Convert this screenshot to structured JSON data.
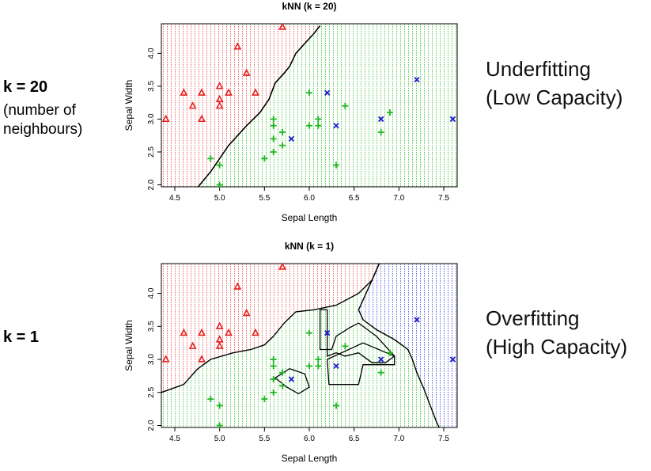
{
  "left_labels": [
    {
      "heading": "k = 20",
      "sub": [
        "(number of",
        "neighbours)"
      ]
    },
    {
      "heading": "k = 1",
      "sub": []
    }
  ],
  "right_labels": [
    {
      "line1": "Underfitting",
      "line2": "(Low Capacity)"
    },
    {
      "line1": "Overfitting",
      "line2": "(High Capacity)"
    }
  ],
  "colors": {
    "class1": "#e8201f",
    "class2": "#20b820",
    "class3": "#1a1ad0",
    "bg1": "#f3c6c2",
    "bg2": "#bfe6bd",
    "bg3": "#c3c8ee"
  },
  "chart_data": [
    {
      "type": "scatter",
      "title": "kNN (k = 20)",
      "xlabel": "Sepal Length",
      "ylabel": "Sepal Width",
      "xlim": [
        4.35,
        7.65
      ],
      "ylim": [
        1.97,
        4.45
      ],
      "xticks": [
        "4.5",
        "5.0",
        "5.5",
        "6.0",
        "6.5",
        "7.0",
        "7.5"
      ],
      "yticks": [
        "2.0",
        "2.5",
        "3.0",
        "3.5",
        "4.0"
      ],
      "background_regions": [
        "red",
        "green"
      ],
      "series": [
        {
          "marker": "triangle",
          "color": "red",
          "points": [
            [
              4.4,
              3.0
            ],
            [
              4.6,
              3.4
            ],
            [
              4.7,
              3.2
            ],
            [
              4.8,
              3.4
            ],
            [
              4.8,
              3.0
            ],
            [
              5.0,
              3.5
            ],
            [
              5.0,
              3.3
            ],
            [
              5.0,
              3.2
            ],
            [
              5.1,
              3.4
            ],
            [
              5.2,
              4.1
            ],
            [
              5.3,
              3.7
            ],
            [
              5.4,
              3.4
            ],
            [
              5.7,
              4.4
            ]
          ]
        },
        {
          "marker": "plus",
          "color": "green",
          "points": [
            [
              4.9,
              2.4
            ],
            [
              5.0,
              2.3
            ],
            [
              5.0,
              2.0
            ],
            [
              5.5,
              2.4
            ],
            [
              5.6,
              3.0
            ],
            [
              5.6,
              2.9
            ],
            [
              5.6,
              2.7
            ],
            [
              5.6,
              2.5
            ],
            [
              5.7,
              2.8
            ],
            [
              5.7,
              2.6
            ],
            [
              6.0,
              3.4
            ],
            [
              6.0,
              2.9
            ],
            [
              6.1,
              3.0
            ],
            [
              6.1,
              2.9
            ],
            [
              6.3,
              2.3
            ],
            [
              6.4,
              3.2
            ],
            [
              6.8,
              2.8
            ],
            [
              6.9,
              3.1
            ]
          ]
        },
        {
          "marker": "x",
          "color": "blue",
          "points": [
            [
              5.8,
              2.7
            ],
            [
              6.2,
              3.4
            ],
            [
              6.3,
              2.9
            ],
            [
              6.8,
              3.0
            ],
            [
              7.2,
              3.6
            ],
            [
              7.6,
              3.0
            ]
          ]
        }
      ]
    },
    {
      "type": "scatter",
      "title": "kNN (k = 1)",
      "xlabel": "Sepal Length",
      "ylabel": "Sepal Width",
      "xlim": [
        4.35,
        7.65
      ],
      "ylim": [
        1.97,
        4.45
      ],
      "xticks": [
        "4.5",
        "5.0",
        "5.5",
        "6.0",
        "6.5",
        "7.0",
        "7.5"
      ],
      "yticks": [
        "2.0",
        "2.5",
        "3.0",
        "3.5",
        "4.0"
      ],
      "background_regions": [
        "red",
        "green",
        "blue"
      ],
      "series": [
        {
          "marker": "triangle",
          "color": "red",
          "points": [
            [
              4.4,
              3.0
            ],
            [
              4.6,
              3.4
            ],
            [
              4.7,
              3.2
            ],
            [
              4.8,
              3.4
            ],
            [
              4.8,
              3.0
            ],
            [
              5.0,
              3.5
            ],
            [
              5.0,
              3.3
            ],
            [
              5.0,
              3.2
            ],
            [
              5.1,
              3.4
            ],
            [
              5.2,
              4.1
            ],
            [
              5.3,
              3.7
            ],
            [
              5.4,
              3.4
            ],
            [
              5.7,
              4.4
            ]
          ]
        },
        {
          "marker": "plus",
          "color": "green",
          "points": [
            [
              4.9,
              2.4
            ],
            [
              5.0,
              2.3
            ],
            [
              5.0,
              2.0
            ],
            [
              5.5,
              2.4
            ],
            [
              5.6,
              3.0
            ],
            [
              5.6,
              2.9
            ],
            [
              5.6,
              2.7
            ],
            [
              5.6,
              2.5
            ],
            [
              5.7,
              2.8
            ],
            [
              5.7,
              2.6
            ],
            [
              6.0,
              3.4
            ],
            [
              6.0,
              2.9
            ],
            [
              6.1,
              3.0
            ],
            [
              6.1,
              2.9
            ],
            [
              6.3,
              2.3
            ],
            [
              6.4,
              3.2
            ],
            [
              6.8,
              2.8
            ],
            [
              6.9,
              3.1
            ]
          ]
        },
        {
          "marker": "x",
          "color": "blue",
          "points": [
            [
              5.8,
              2.7
            ],
            [
              6.2,
              3.4
            ],
            [
              6.3,
              2.9
            ],
            [
              6.8,
              3.0
            ],
            [
              7.2,
              3.6
            ],
            [
              7.6,
              3.0
            ]
          ]
        }
      ]
    }
  ]
}
